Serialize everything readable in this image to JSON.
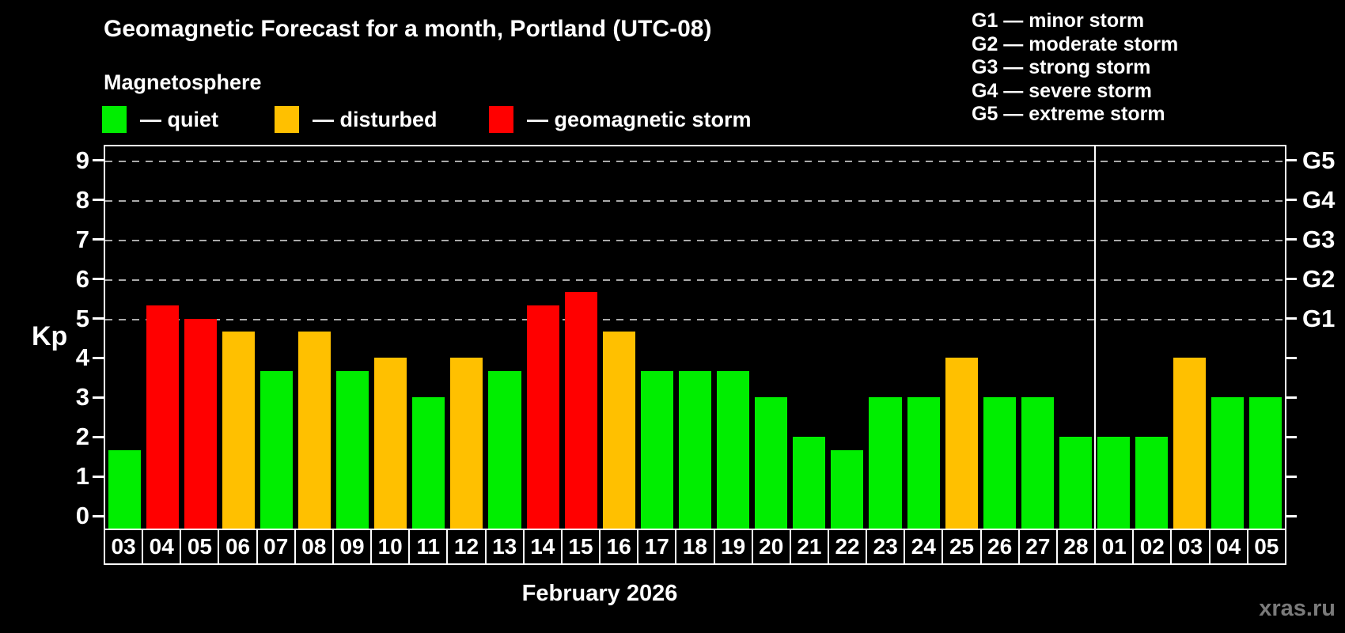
{
  "header": {
    "title": "Geomagnetic Forecast for a month, Portland (UTC-08)",
    "subtitle": "Magnetosphere",
    "legend_items": [
      {
        "key": "quiet",
        "label": "— quiet",
        "color": "#00ee00"
      },
      {
        "key": "disturbed",
        "label": "— disturbed",
        "color": "#ffc000"
      },
      {
        "key": "storm",
        "label": "— geomagnetic storm",
        "color": "#ff0000"
      }
    ],
    "g_scale_legend": [
      "G1 — minor storm",
      "G2 — moderate storm",
      "G3 — strong storm",
      "G4 — severe storm",
      "G5 — extreme storm"
    ]
  },
  "chart_data": {
    "type": "bar",
    "title": "Geomagnetic Forecast for a month, Portland (UTC-08)",
    "ylabel": "Kp",
    "xlabel": "February 2026",
    "ylim": [
      0,
      9.4
    ],
    "y_ticks": [
      0,
      1,
      2,
      3,
      4,
      5,
      6,
      7,
      8,
      9
    ],
    "gridlines_at_kp": [
      5,
      6,
      7,
      8,
      9
    ],
    "grid_style": "dashed horizontal, behind bars",
    "legend_position": "top-left",
    "g_levels": [
      {
        "kp": 5,
        "label": "G1"
      },
      {
        "kp": 6,
        "label": "G2"
      },
      {
        "kp": 7,
        "label": "G3"
      },
      {
        "kp": 8,
        "label": "G4"
      },
      {
        "kp": 9,
        "label": "G5"
      }
    ],
    "categories": [
      "03",
      "04",
      "05",
      "06",
      "07",
      "08",
      "09",
      "10",
      "11",
      "12",
      "13",
      "14",
      "15",
      "16",
      "17",
      "18",
      "19",
      "20",
      "21",
      "22",
      "23",
      "24",
      "25",
      "26",
      "27",
      "28",
      "01",
      "02",
      "03",
      "04",
      "05"
    ],
    "values": [
      1.67,
      5.33,
      5.0,
      4.67,
      3.67,
      4.67,
      3.67,
      4.0,
      3.0,
      4.0,
      3.67,
      5.33,
      5.67,
      4.67,
      3.67,
      3.67,
      3.67,
      3.0,
      2.0,
      1.67,
      3.0,
      3.0,
      4.0,
      3.0,
      3.0,
      2.0,
      2.0,
      2.0,
      4.0,
      3.0,
      3.0
    ],
    "statuses": [
      "quiet",
      "storm",
      "storm",
      "disturbed",
      "quiet",
      "disturbed",
      "quiet",
      "disturbed",
      "quiet",
      "disturbed",
      "quiet",
      "storm",
      "storm",
      "disturbed",
      "quiet",
      "quiet",
      "quiet",
      "quiet",
      "quiet",
      "quiet",
      "quiet",
      "quiet",
      "disturbed",
      "quiet",
      "quiet",
      "quiet",
      "quiet",
      "quiet",
      "disturbed",
      "quiet",
      "quiet"
    ],
    "status_colors": {
      "quiet": "#00ee00",
      "disturbed": "#ffc000",
      "storm": "#ff0000"
    },
    "month_separator_index": 26
  },
  "footer": {
    "month_label": "February 2026",
    "watermark": "xras.ru"
  }
}
